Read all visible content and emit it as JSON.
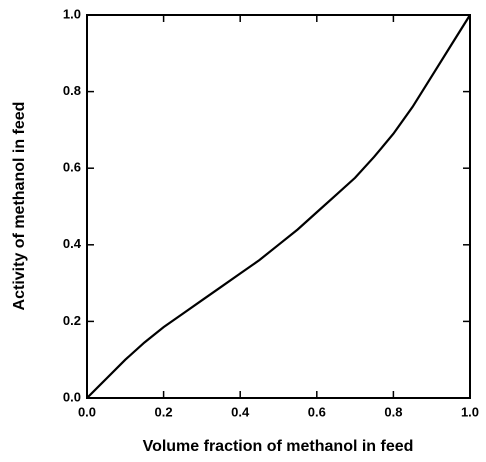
{
  "chart_data": {
    "type": "line",
    "xlabel": "Volume fraction of methanol in feed",
    "ylabel": "Activity of methanol in feed",
    "x": [
      0,
      0.05,
      0.1,
      0.15,
      0.2,
      0.25,
      0.3,
      0.35,
      0.4,
      0.45,
      0.5,
      0.55,
      0.6,
      0.65,
      0.7,
      0.75,
      0.8,
      0.85,
      0.9,
      0.95,
      1.0
    ],
    "series": [
      {
        "color": "#000000",
        "values": [
          0,
          0.05,
          0.1,
          0.145,
          0.185,
          0.22,
          0.255,
          0.29,
          0.325,
          0.36,
          0.4,
          0.44,
          0.485,
          0.53,
          0.575,
          0.63,
          0.69,
          0.76,
          0.84,
          0.92,
          1.0
        ]
      }
    ],
    "xlim": [
      0,
      1
    ],
    "ylim": [
      0,
      1
    ],
    "xticks": [
      {
        "value": 0,
        "label": "0.0"
      },
      0.2,
      0.4,
      0.6,
      0.8,
      {
        "value": 1,
        "label": "1.0"
      }
    ],
    "yticks": [
      {
        "value": 0,
        "label": "0.0"
      },
      0.2,
      0.4,
      0.6,
      0.8,
      {
        "value": 1,
        "label": "1.0"
      }
    ],
    "grid": false
  }
}
